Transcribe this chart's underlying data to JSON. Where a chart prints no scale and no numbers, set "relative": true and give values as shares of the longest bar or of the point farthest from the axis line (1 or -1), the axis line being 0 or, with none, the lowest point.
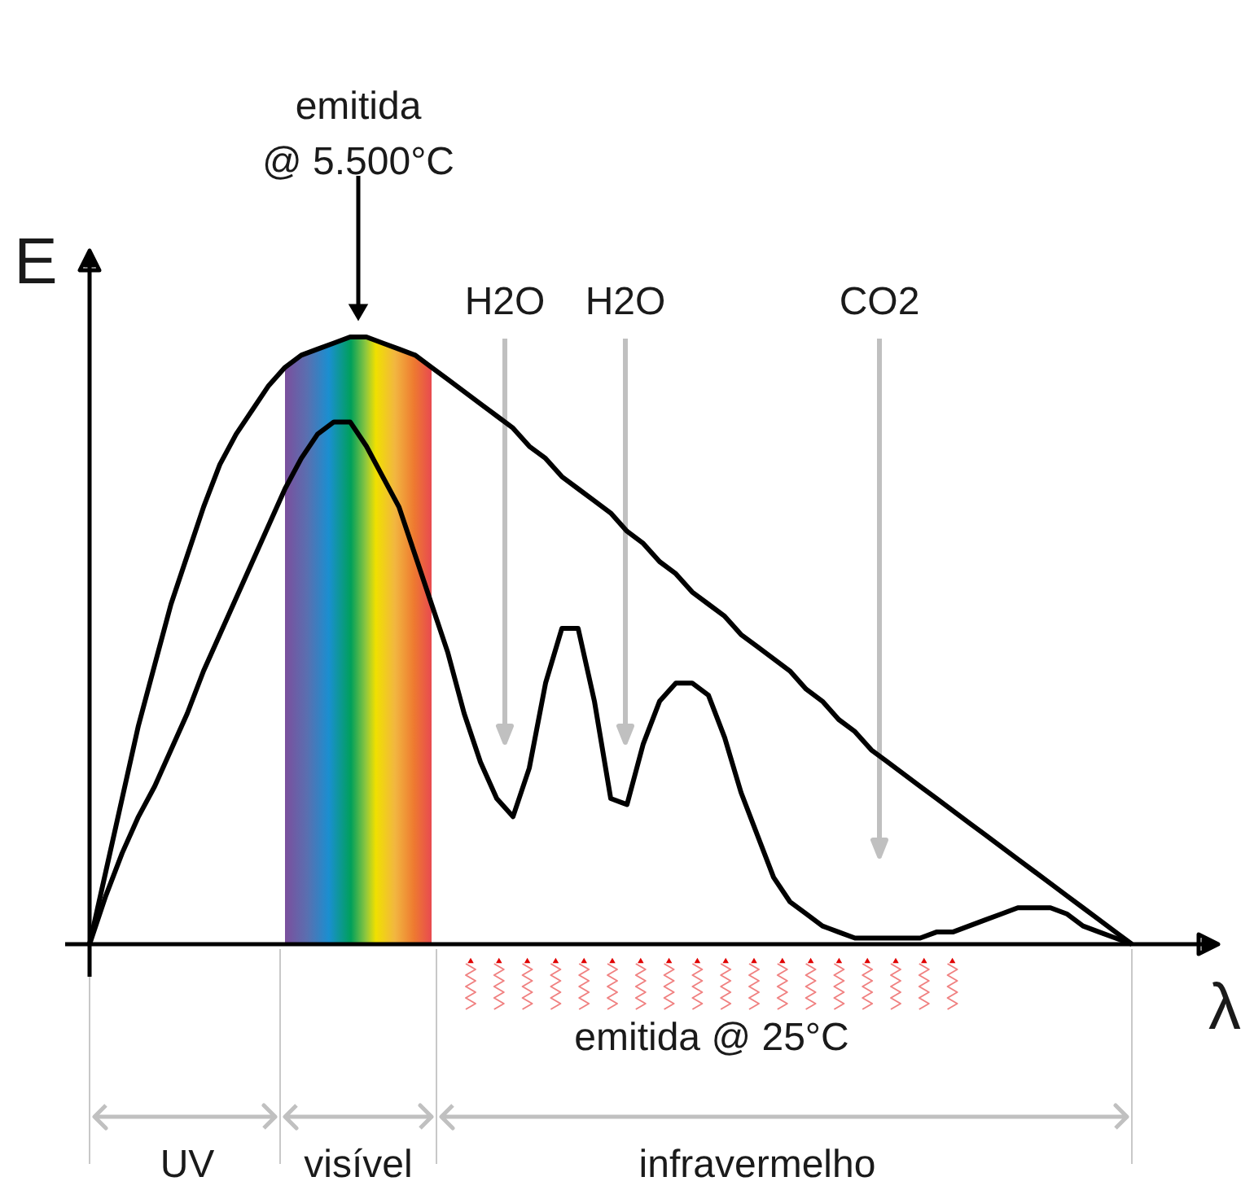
{
  "chart_data": {
    "type": "line",
    "relative": true,
    "xlabel": "λ",
    "ylabel": "E",
    "categories": [
      null,
      null,
      null,
      null,
      null,
      null,
      null,
      null,
      null,
      null,
      null,
      null,
      null,
      null,
      null,
      null,
      null,
      null,
      null,
      null,
      null,
      null,
      null,
      null,
      null,
      null,
      null,
      null,
      null,
      null,
      null,
      null,
      null,
      null,
      null,
      null,
      null,
      null,
      null,
      null,
      null,
      null,
      null,
      null,
      null,
      null,
      null,
      null,
      null,
      null,
      null,
      null,
      null,
      null,
      null,
      null,
      null,
      null,
      null,
      null,
      null,
      null,
      null,
      null,
      null
    ],
    "series": [
      {
        "color": "#000000",
        "values": [
          0,
          0.12,
          0.24,
          0.36,
          0.46,
          0.56,
          0.64,
          0.72,
          0.79,
          0.84,
          0.88,
          0.92,
          0.95,
          0.97,
          0.98,
          0.99,
          1,
          1,
          0.99,
          0.98,
          0.97,
          0.95,
          0.93,
          0.91,
          0.89,
          0.87,
          0.85,
          0.82,
          0.8,
          0.77,
          0.75,
          0.73,
          0.71,
          0.68,
          0.66,
          0.63,
          0.61,
          0.58,
          0.56,
          0.54,
          0.51,
          0.49,
          0.47,
          0.45,
          0.42,
          0.4,
          0.37,
          0.35,
          0.32,
          0.3,
          0.28,
          0.26,
          0.24,
          0.22,
          0.2,
          0.18,
          0.16,
          0.14,
          0.12,
          0.1,
          0.08,
          0.06,
          0.04,
          0.02,
          0
        ]
      },
      {
        "color": "#000000",
        "values": [
          0,
          0.08,
          0.15,
          0.21,
          0.26,
          0.32,
          0.38,
          0.45,
          0.51,
          0.57,
          0.63,
          0.69,
          0.75,
          0.8,
          0.84,
          0.86,
          0.86,
          0.82,
          0.77,
          0.72,
          0.64,
          0.56,
          0.48,
          0.38,
          0.3,
          0.24,
          0.21,
          0.29,
          0.43,
          0.52,
          0.52,
          0.4,
          0.24,
          0.23,
          0.33,
          0.4,
          0.43,
          0.43,
          0.41,
          0.34,
          0.25,
          0.18,
          0.11,
          0.07,
          0.05,
          0.03,
          0.02,
          0.01,
          0.01,
          0.01,
          0.01,
          0.01,
          0.02,
          0.02,
          0.03,
          0.04,
          0.05,
          0.06,
          0.06,
          0.06,
          0.05,
          0.03,
          0.02,
          0.01,
          0
        ]
      }
    ],
    "annotations": [
      "emitida\n@ 5.500°C",
      "H2O",
      "H2O",
      "CO2",
      "emitida @ 25°C",
      "UV",
      "visível",
      "infravermelho"
    ]
  }
}
